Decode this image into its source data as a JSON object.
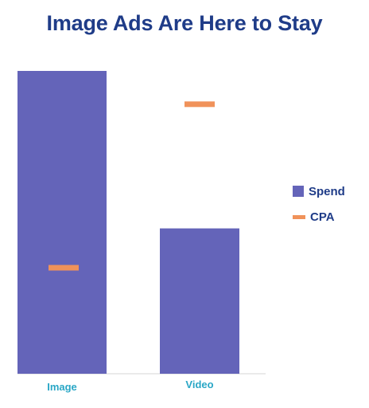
{
  "chart_data": {
    "type": "bar",
    "title": "Image Ads Are Here to Stay",
    "categories": [
      "Image",
      "Video"
    ],
    "series": [
      {
        "name": "Spend",
        "kind": "bar",
        "color": "#6464b9",
        "values": [
          100,
          48
        ]
      },
      {
        "name": "CPA",
        "kind": "marker",
        "color": "#f0925a",
        "values": [
          35,
          89
        ]
      }
    ],
    "ylim": [
      0,
      100
    ],
    "grid": false,
    "legend": "right",
    "colors": {
      "title": "#1f3c88",
      "tick_labels": "#2aa7c6",
      "legend_text": "#1f3c88",
      "axis": "#e4e4e4"
    }
  }
}
